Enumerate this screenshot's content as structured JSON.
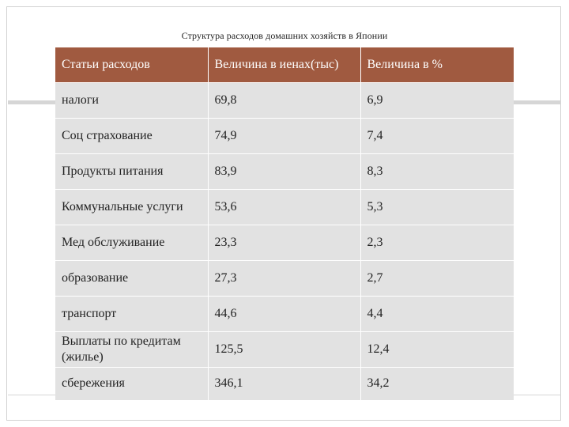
{
  "title": "Структура расходов домашних хозяйств в Японии",
  "table": {
    "headers": [
      "Статьи расходов",
      "Величина в иенах(тыс)",
      "Величина в %"
    ],
    "rows": [
      [
        "налоги",
        "69,8",
        "6,9"
      ],
      [
        "Соц страхование",
        "74,9",
        "7,4"
      ],
      [
        "Продукты питания",
        "83,9",
        "8,3"
      ],
      [
        "Коммунальные услуги",
        "53,6",
        "5,3"
      ],
      [
        "Мед обслуживание",
        "23,3",
        "2,3"
      ],
      [
        "образование",
        "27,3",
        "2,7"
      ],
      [
        "транспорт",
        "44,6",
        "4,4"
      ],
      [
        "Выплаты по кредитам (жилье)",
        "125,5",
        "12,4"
      ],
      [
        "сбережения",
        "346,1",
        "34,2"
      ]
    ]
  }
}
